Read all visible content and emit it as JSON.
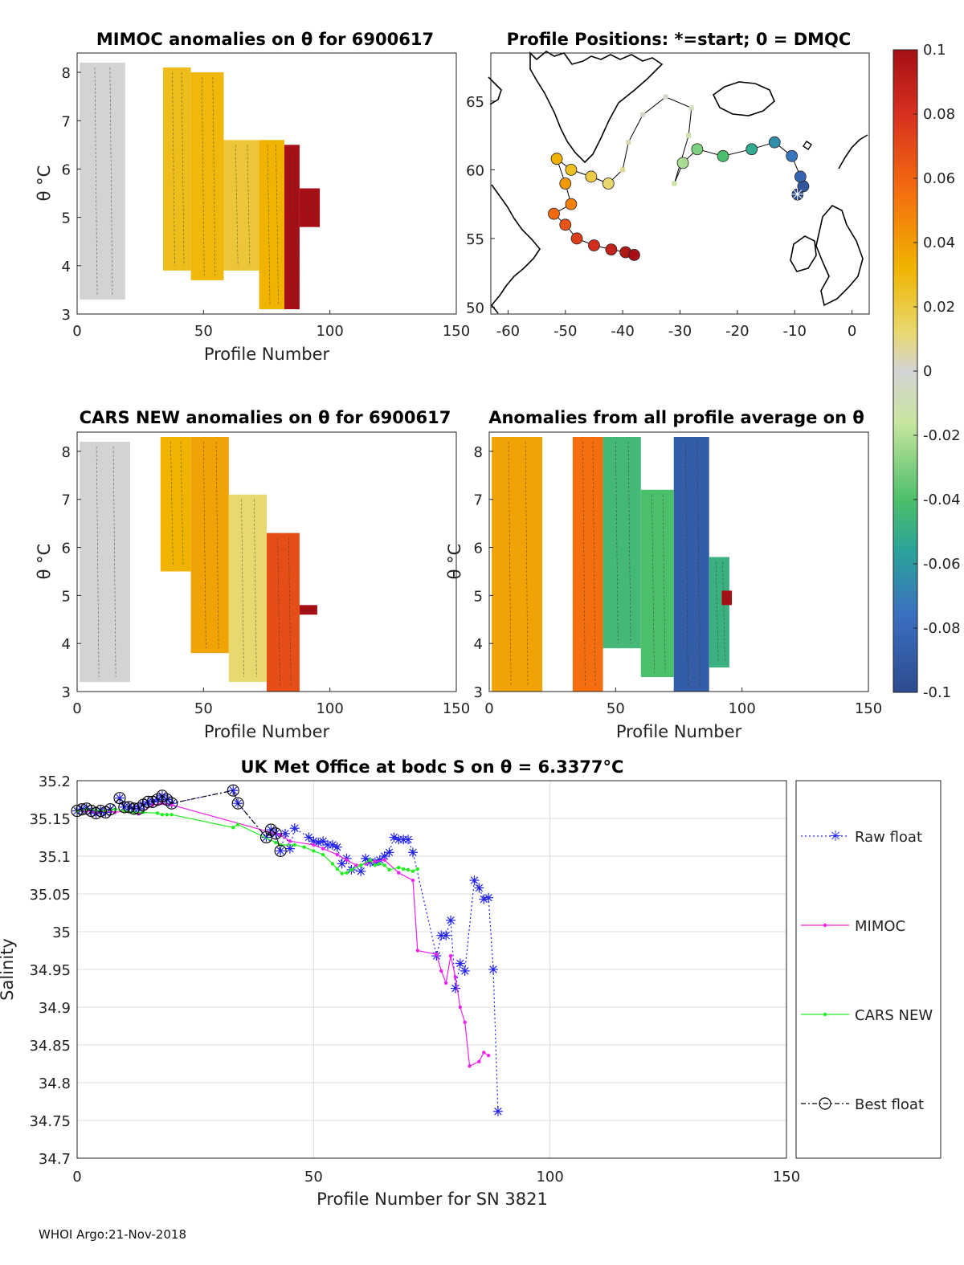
{
  "footer": "WHOI Argo:21-Nov-2018",
  "colors": {
    "raw": "#2222ee",
    "mimoc": "#ee22ee",
    "cars": "#22ee22",
    "best": "#000000",
    "land": "#000000",
    "missing": "#d3d3d3"
  },
  "chart_data": [
    {
      "id": "mimoc",
      "type": "heatmap",
      "title": "MIMOC anomalies on θ  for 6900617",
      "xlabel": "Profile Number",
      "ylabel": "θ °C",
      "xlim": [
        0,
        150
      ],
      "ylim": [
        3,
        8.4
      ],
      "xticks": [
        "0",
        "50",
        "100",
        "150"
      ],
      "yticks": [
        "3",
        "4",
        "5",
        "6",
        "7",
        "8"
      ],
      "value_range": [
        -0.1,
        0.1
      ],
      "note": "Anomaly field rendered as color cells; values are approximate per profile band.",
      "columns": [
        {
          "x0": 1,
          "x1": 19,
          "ymin": 3.3,
          "ymax": 8.2,
          "value": 0.0
        },
        {
          "x0": 34,
          "x1": 45,
          "ymin": 3.9,
          "ymax": 8.1,
          "value": 0.035
        },
        {
          "x0": 45,
          "x1": 58,
          "ymin": 3.7,
          "ymax": 8.0,
          "value": 0.038
        },
        {
          "x0": 58,
          "x1": 72,
          "ymin": 3.9,
          "ymax": 6.6,
          "value": 0.03
        },
        {
          "x0": 72,
          "x1": 82,
          "ymin": 3.1,
          "ymax": 6.6,
          "value": 0.04
        },
        {
          "x0": 82,
          "x1": 88,
          "ymin": 3.1,
          "ymax": 6.5,
          "value": 0.1
        },
        {
          "x0": 88,
          "x1": 96,
          "ymin": 4.8,
          "ymax": 5.6,
          "value": 0.1
        }
      ]
    },
    {
      "id": "positions",
      "type": "scatter",
      "title": "Profile Positions: *=start; 0 = DMQC",
      "xlim": [
        -63,
        3
      ],
      "ylim": [
        49.5,
        68.5
      ],
      "xticks": [
        "-60",
        "-50",
        "-40",
        "-30",
        "-20",
        "-10",
        "0"
      ],
      "yticks": [
        "50",
        "55",
        "60",
        "65"
      ],
      "colorbar": {
        "ticks": [
          "0.1",
          "0.08",
          "0.06",
          "0.04",
          "0.02",
          "0",
          "-0.02",
          "-0.04",
          "-0.06",
          "-0.08",
          "-0.1"
        ]
      },
      "track": [
        [
          -9.5,
          58.2,
          0
        ],
        [
          -8.5,
          58.8,
          3
        ],
        [
          -9.0,
          59.5,
          6
        ],
        [
          -10.5,
          61.0,
          10
        ],
        [
          -13.5,
          62.0,
          14
        ],
        [
          -17.5,
          61.5,
          20
        ],
        [
          -22.5,
          61.0,
          26
        ],
        [
          -27.0,
          61.5,
          30
        ],
        [
          -29.5,
          60.5,
          33
        ],
        [
          -31.0,
          59.0,
          36
        ],
        [
          -28.5,
          62.5,
          38
        ],
        [
          -28.0,
          64.5,
          40
        ],
        [
          -32.5,
          65.3,
          42
        ],
        [
          -36.5,
          64.0,
          45
        ],
        [
          -39.0,
          62.0,
          47
        ],
        [
          -40.0,
          60.0,
          50
        ],
        [
          -42.5,
          59.0,
          53
        ],
        [
          -45.5,
          59.5,
          56
        ],
        [
          -49.0,
          60.0,
          59
        ],
        [
          -51.5,
          60.8,
          62
        ],
        [
          -50.0,
          59.0,
          65
        ],
        [
          -49.0,
          57.5,
          68
        ],
        [
          -52.0,
          56.8,
          71
        ],
        [
          -50.0,
          56.0,
          74
        ],
        [
          -48.0,
          55.0,
          77
        ],
        [
          -45.0,
          54.5,
          80
        ],
        [
          -42.0,
          54.2,
          83
        ],
        [
          -39.5,
          54.0,
          86
        ],
        [
          -38.0,
          53.8,
          88
        ]
      ]
    },
    {
      "id": "cars",
      "type": "heatmap",
      "title": "CARS NEW anomalies on θ for 6900617",
      "xlabel": "Profile Number",
      "ylabel": "θ °C",
      "xlim": [
        0,
        150
      ],
      "ylim": [
        3,
        8.4
      ],
      "xticks": [
        "0",
        "50",
        "100",
        "150"
      ],
      "yticks": [
        "3",
        "4",
        "5",
        "6",
        "7",
        "8"
      ],
      "value_range": [
        -0.1,
        0.1
      ],
      "columns": [
        {
          "x0": 1,
          "x1": 21,
          "ymin": 3.2,
          "ymax": 8.2,
          "value": 0.0
        },
        {
          "x0": 33,
          "x1": 45,
          "ymin": 5.5,
          "ymax": 8.3,
          "value": 0.04
        },
        {
          "x0": 45,
          "x1": 60,
          "ymin": 3.8,
          "ymax": 8.3,
          "value": 0.045
        },
        {
          "x0": 60,
          "x1": 75,
          "ymin": 3.2,
          "ymax": 7.1,
          "value": 0.02
        },
        {
          "x0": 75,
          "x1": 88,
          "ymin": 3.0,
          "ymax": 6.3,
          "value": 0.07
        },
        {
          "x0": 88,
          "x1": 95,
          "ymin": 4.6,
          "ymax": 4.8,
          "value": 0.1
        }
      ]
    },
    {
      "id": "average",
      "type": "heatmap",
      "title": "Anomalies from all profile average on θ",
      "xlabel": "Profile Number",
      "ylabel": "θ °C",
      "xlim": [
        0,
        150
      ],
      "ylim": [
        3,
        8.4
      ],
      "xticks": [
        "0",
        "50",
        "100",
        "150"
      ],
      "yticks": [
        "3",
        "4",
        "5",
        "6",
        "7",
        "8"
      ],
      "value_range": [
        -0.1,
        0.1
      ],
      "columns": [
        {
          "x0": 1,
          "x1": 21,
          "ymin": 3.0,
          "ymax": 8.3,
          "value": 0.045
        },
        {
          "x0": 33,
          "x1": 45,
          "ymin": 3.0,
          "ymax": 8.3,
          "value": 0.06
        },
        {
          "x0": 45,
          "x1": 60,
          "ymin": 3.9,
          "ymax": 8.3,
          "value": -0.045
        },
        {
          "x0": 60,
          "x1": 73,
          "ymin": 3.3,
          "ymax": 7.2,
          "value": -0.04
        },
        {
          "x0": 73,
          "x1": 87,
          "ymin": 3.0,
          "ymax": 8.3,
          "value": -0.09
        },
        {
          "x0": 87,
          "x1": 95,
          "ymin": 3.5,
          "ymax": 5.8,
          "value": -0.05
        },
        {
          "x0": 92,
          "x1": 96,
          "ymin": 4.8,
          "ymax": 5.1,
          "value": 0.1
        }
      ]
    },
    {
      "id": "salinity",
      "type": "line",
      "title": "UK Met Office at bodc S on θ = 6.3377°C",
      "xlabel": "Profile Number for SN 3821",
      "ylabel": "Salinity",
      "xlim": [
        0,
        150
      ],
      "ylim": [
        34.7,
        35.2
      ],
      "xticks": [
        "0",
        "50",
        "100",
        "150"
      ],
      "yticks": [
        "34.7",
        "34.75",
        "34.8",
        "34.85",
        "34.9",
        "34.95",
        "35",
        "35.05",
        "35.1",
        "35.15",
        "35.2"
      ],
      "legend": [
        "Raw float",
        "MIMOC",
        "CARS NEW",
        "Best float"
      ],
      "series": [
        {
          "name": "Raw float",
          "points": [
            [
              0,
              35.16
            ],
            [
              1,
              35.162
            ],
            [
              2,
              35.163
            ],
            [
              3,
              35.16
            ],
            [
              4,
              35.157
            ],
            [
              5,
              35.16
            ],
            [
              6,
              35.158
            ],
            [
              7,
              35.162
            ],
            [
              9,
              35.177
            ],
            [
              10,
              35.165
            ],
            [
              11,
              35.165
            ],
            [
              12,
              35.163
            ],
            [
              13,
              35.163
            ],
            [
              14,
              35.168
            ],
            [
              15,
              35.172
            ],
            [
              16,
              35.172
            ],
            [
              17,
              35.175
            ],
            [
              18,
              35.18
            ],
            [
              19,
              35.175
            ],
            [
              20,
              35.17
            ],
            [
              33,
              35.187
            ],
            [
              34,
              35.17
            ],
            [
              40,
              35.125
            ],
            [
              41,
              35.135
            ],
            [
              42,
              35.13
            ],
            [
              43,
              35.107
            ],
            [
              44,
              35.13
            ],
            [
              45,
              35.11
            ],
            [
              46,
              35.137
            ],
            [
              49,
              35.125
            ],
            [
              50,
              35.12
            ],
            [
              51,
              35.118
            ],
            [
              52,
              35.12
            ],
            [
              53,
              35.115
            ],
            [
              54,
              35.115
            ],
            [
              55,
              35.112
            ],
            [
              56,
              35.09
            ],
            [
              57,
              35.097
            ],
            [
              58,
              35.082
            ],
            [
              60,
              35.08
            ],
            [
              61,
              35.097
            ],
            [
              62,
              35.092
            ],
            [
              63,
              35.092
            ],
            [
              64,
              35.095
            ],
            [
              65,
              35.1
            ],
            [
              66,
              35.105
            ],
            [
              67,
              35.125
            ],
            [
              68,
              35.122
            ],
            [
              69,
              35.122
            ],
            [
              70,
              35.122
            ],
            [
              71,
              35.105
            ],
            [
              76,
              34.968
            ],
            [
              77,
              34.995
            ],
            [
              78,
              34.995
            ],
            [
              79,
              35.015
            ],
            [
              80,
              34.925
            ],
            [
              81,
              34.958
            ],
            [
              82,
              34.948
            ],
            [
              84,
              35.068
            ],
            [
              85,
              35.058
            ],
            [
              86,
              35.043
            ],
            [
              87,
              35.045
            ],
            [
              88,
              34.95
            ],
            [
              89,
              34.762
            ]
          ]
        },
        {
          "name": "MIMOC",
          "points": [
            [
              0,
              35.16
            ],
            [
              2,
              35.16
            ],
            [
              4,
              35.158
            ],
            [
              6,
              35.16
            ],
            [
              8,
              35.158
            ],
            [
              10,
              35.16
            ],
            [
              13,
              35.156
            ],
            [
              16,
              35.168
            ],
            [
              18,
              35.17
            ],
            [
              20,
              35.168
            ],
            [
              43,
              35.128
            ],
            [
              45,
              35.12
            ],
            [
              50,
              35.115
            ],
            [
              52,
              35.11
            ],
            [
              55,
              35.102
            ],
            [
              57,
              35.095
            ],
            [
              59,
              35.088
            ],
            [
              61,
              35.09
            ],
            [
              63,
              35.093
            ],
            [
              65,
              35.095
            ],
            [
              68,
              35.078
            ],
            [
              71,
              35.068
            ],
            [
              72,
              34.975
            ],
            [
              76,
              34.97
            ],
            [
              77,
              34.948
            ],
            [
              78,
              34.932
            ],
            [
              79,
              34.968
            ],
            [
              80,
              34.94
            ],
            [
              81,
              34.9
            ],
            [
              82,
              34.88
            ],
            [
              83,
              34.822
            ],
            [
              85,
              34.828
            ],
            [
              86,
              34.84
            ],
            [
              87,
              34.836
            ]
          ]
        },
        {
          "name": "CARS NEW",
          "points": [
            [
              0,
              35.16
            ],
            [
              2,
              35.162
            ],
            [
              4,
              35.161
            ],
            [
              6,
              35.16
            ],
            [
              8,
              35.162
            ],
            [
              10,
              35.16
            ],
            [
              12,
              35.158
            ],
            [
              14,
              35.158
            ],
            [
              17,
              35.157
            ],
            [
              18,
              35.155
            ],
            [
              19,
              35.155
            ],
            [
              20,
              35.155
            ],
            [
              33,
              35.138
            ],
            [
              34,
              35.142
            ],
            [
              42,
              35.118
            ],
            [
              43,
              35.115
            ],
            [
              46,
              35.115
            ],
            [
              48,
              35.112
            ],
            [
              50,
              35.107
            ],
            [
              52,
              35.102
            ],
            [
              54,
              35.09
            ],
            [
              55,
              35.083
            ],
            [
              56,
              35.077
            ],
            [
              57,
              35.078
            ],
            [
              58,
              35.082
            ],
            [
              60,
              35.088
            ],
            [
              62,
              35.095
            ],
            [
              63,
              35.088
            ],
            [
              64,
              35.09
            ],
            [
              65,
              35.088
            ],
            [
              66,
              35.082
            ],
            [
              68,
              35.085
            ],
            [
              69,
              35.083
            ],
            [
              70,
              35.082
            ],
            [
              71,
              35.08
            ],
            [
              72,
              35.083
            ]
          ]
        },
        {
          "name": "Best float",
          "points": [
            [
              0,
              35.16
            ],
            [
              1,
              35.162
            ],
            [
              2,
              35.163
            ],
            [
              3,
              35.16
            ],
            [
              4,
              35.157
            ],
            [
              5,
              35.16
            ],
            [
              6,
              35.158
            ],
            [
              7,
              35.162
            ],
            [
              9,
              35.177
            ],
            [
              10,
              35.165
            ],
            [
              11,
              35.165
            ],
            [
              12,
              35.163
            ],
            [
              13,
              35.163
            ],
            [
              14,
              35.168
            ],
            [
              15,
              35.172
            ],
            [
              16,
              35.172
            ],
            [
              17,
              35.175
            ],
            [
              18,
              35.18
            ],
            [
              19,
              35.175
            ],
            [
              20,
              35.17
            ],
            [
              33,
              35.187
            ],
            [
              34,
              35.17
            ],
            [
              40,
              35.125
            ],
            [
              41,
              35.135
            ],
            [
              42,
              35.13
            ],
            [
              43,
              35.107
            ]
          ]
        }
      ]
    }
  ]
}
